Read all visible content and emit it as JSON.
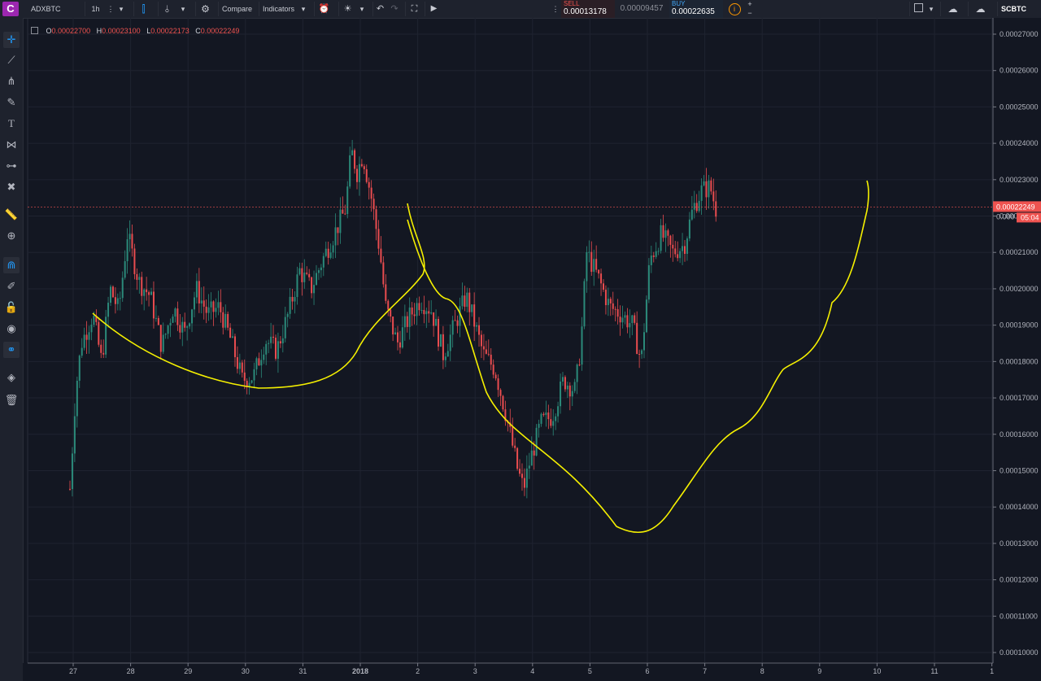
{
  "toolbar": {
    "symbol": "ADXBTC",
    "interval": "1h",
    "compare_label": "Compare",
    "indicators_label": "Indicators",
    "exchange_label": "SCBTC"
  },
  "trade_panel": {
    "sell_label": "SELL",
    "sell_price": "0.00013178",
    "spread": "0.00009457",
    "buy_label": "BUY",
    "buy_price": "0.00022635"
  },
  "ohlc": {
    "o_label": "O",
    "o_value": "0.00022700",
    "h_label": "H",
    "h_value": "0.00023100",
    "l_label": "L",
    "l_value": "0.00022173",
    "c_label": "C",
    "c_value": "0.00022249"
  },
  "sidebar_icons": [
    "crosshair-icon",
    "trend-line-icon",
    "pitchfork-icon",
    "brush-icon",
    "text-icon",
    "pattern-icon",
    "prediction-icon",
    "remove-icon",
    "ruler-icon",
    "zoom-in-icon",
    "magnet-icon",
    "lock-drawing-icon",
    "unlock-icon",
    "eye-icon",
    "link-icon",
    "layers-icon",
    "trash-icon"
  ],
  "colors": {
    "background": "#131722",
    "up": "#26a69a",
    "down": "#ef5350",
    "annotation": "#f5f000",
    "price_tag": "#ef5350"
  },
  "chart_data": {
    "type": "candlestick",
    "ylim": [
      9.5e-05,
      0.000273
    ],
    "y_ticks": [
      "0.00027000",
      "0.00026000",
      "0.00025000",
      "0.00024000",
      "0.00023000",
      "0.00022000",
      "0.00021000",
      "0.00020000",
      "0.00019000",
      "0.00018000",
      "0.00017000",
      "0.00016000",
      "0.00015000",
      "0.00014000",
      "0.00013000",
      "0.00012000",
      "0.00011000",
      "0.00010000"
    ],
    "x_ticks": [
      "27",
      "28",
      "29",
      "30",
      "31",
      "2018",
      "2",
      "3",
      "4",
      "5",
      "6",
      "7",
      "8",
      "9",
      "10",
      "11",
      "1"
    ],
    "last_price": "0.00022249",
    "last_price_partial": "0.000",
    "countdown": "05:04",
    "price_path": [
      {
        "d": 0,
        "p": 0.000145
      },
      {
        "d": 0.1,
        "p": 0.000172
      },
      {
        "d": 0.2,
        "p": 0.000185
      },
      {
        "d": 0.4,
        "p": 0.000193
      },
      {
        "d": 0.55,
        "p": 0.00018
      },
      {
        "d": 0.7,
        "p": 0.0002
      },
      {
        "d": 0.85,
        "p": 0.000194
      },
      {
        "d": 1.0,
        "p": 0.000215
      },
      {
        "d": 1.2,
        "p": 0.000202
      },
      {
        "d": 1.4,
        "p": 0.000198
      },
      {
        "d": 1.6,
        "p": 0.000184
      },
      {
        "d": 1.8,
        "p": 0.000195
      },
      {
        "d": 2.0,
        "p": 0.000188
      },
      {
        "d": 2.2,
        "p": 0.0002
      },
      {
        "d": 2.4,
        "p": 0.000193
      },
      {
        "d": 2.6,
        "p": 0.000195
      },
      {
        "d": 2.8,
        "p": 0.000186
      },
      {
        "d": 3.0,
        "p": 0.000175
      },
      {
        "d": 3.2,
        "p": 0.000176
      },
      {
        "d": 3.4,
        "p": 0.000186
      },
      {
        "d": 3.6,
        "p": 0.000183
      },
      {
        "d": 3.8,
        "p": 0.000193
      },
      {
        "d": 4.0,
        "p": 0.000205
      },
      {
        "d": 4.2,
        "p": 0.0002
      },
      {
        "d": 4.4,
        "p": 0.000208
      },
      {
        "d": 4.6,
        "p": 0.000215
      },
      {
        "d": 4.8,
        "p": 0.000222
      },
      {
        "d": 4.9,
        "p": 0.000238
      },
      {
        "d": 5.0,
        "p": 0.000232
      },
      {
        "d": 5.1,
        "p": 0.000237
      },
      {
        "d": 5.25,
        "p": 0.000225
      },
      {
        "d": 5.4,
        "p": 0.00021
      },
      {
        "d": 5.5,
        "p": 0.000195
      },
      {
        "d": 5.7,
        "p": 0.000185
      },
      {
        "d": 5.9,
        "p": 0.000192
      },
      {
        "d": 6.1,
        "p": 0.000197
      },
      {
        "d": 6.3,
        "p": 0.000194
      },
      {
        "d": 6.5,
        "p": 0.000182
      },
      {
        "d": 6.7,
        "p": 0.00019
      },
      {
        "d": 6.9,
        "p": 0.000198
      },
      {
        "d": 7.0,
        "p": 0.000193
      },
      {
        "d": 7.2,
        "p": 0.000182
      },
      {
        "d": 7.4,
        "p": 0.000178
      },
      {
        "d": 7.6,
        "p": 0.000165
      },
      {
        "d": 7.8,
        "p": 0.00015
      },
      {
        "d": 7.9,
        "p": 0.000145
      },
      {
        "d": 8.0,
        "p": 0.000152
      },
      {
        "d": 8.2,
        "p": 0.000163
      },
      {
        "d": 8.4,
        "p": 0.000165
      },
      {
        "d": 8.6,
        "p": 0.000175
      },
      {
        "d": 8.8,
        "p": 0.000172
      },
      {
        "d": 8.9,
        "p": 0.000185
      },
      {
        "d": 9.0,
        "p": 0.00021
      },
      {
        "d": 9.2,
        "p": 0.000203
      },
      {
        "d": 9.4,
        "p": 0.000195
      },
      {
        "d": 9.6,
        "p": 0.000193
      },
      {
        "d": 9.8,
        "p": 0.00019
      },
      {
        "d": 9.95,
        "p": 0.00018
      },
      {
        "d": 10.1,
        "p": 0.000208
      },
      {
        "d": 10.3,
        "p": 0.000215
      },
      {
        "d": 10.5,
        "p": 0.00021
      },
      {
        "d": 10.7,
        "p": 0.000212
      },
      {
        "d": 10.85,
        "p": 0.000222
      },
      {
        "d": 11.0,
        "p": 0.000227
      },
      {
        "d": 11.15,
        "p": 0.000228
      },
      {
        "d": 11.25,
        "p": 0.000222
      }
    ]
  }
}
